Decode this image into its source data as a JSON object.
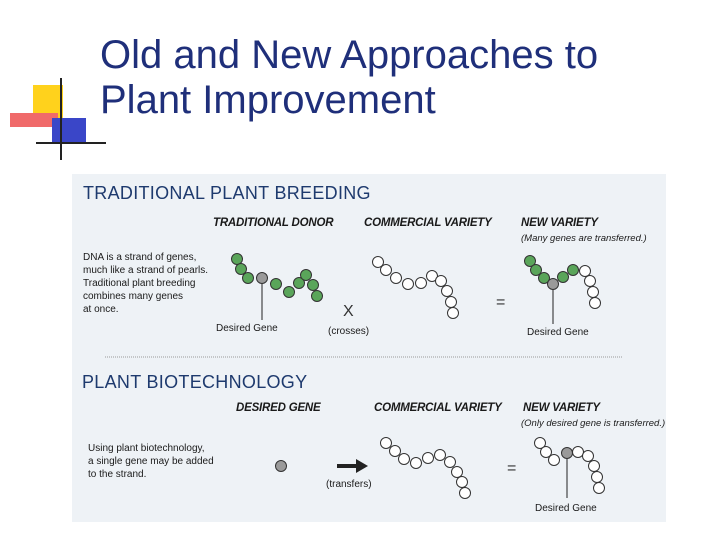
{
  "title": {
    "line1": "Old and New Approaches to",
    "line2": "Plant Improvement"
  },
  "traditional": {
    "heading": "TRADITIONAL PLANT BREEDING",
    "col_donor": "TRADITIONAL DONOR",
    "col_commercial": "COMMERCIAL VARIETY",
    "col_new": "NEW VARIETY",
    "new_note": "(Many genes are transferred.)",
    "desc": [
      "DNA is a strand of genes,",
      "much like a strand of pearls.",
      "Traditional plant breeding",
      "combines many genes",
      "at once."
    ],
    "desired_gene_label": "Desired Gene",
    "operator": "X",
    "operator_caption": "(crosses)",
    "equals": "=",
    "new_desired_label": "Desired Gene"
  },
  "biotech": {
    "heading": "PLANT BIOTECHNOLOGY",
    "col_desired": "DESIRED GENE",
    "col_commercial": "COMMERCIAL VARIETY",
    "col_new": "NEW VARIETY",
    "new_note": "(Only desired gene is transferred.)",
    "desc": [
      "Using plant biotechnology,",
      "a single gene may be added",
      "to the strand."
    ],
    "operator_caption": "(transfers)",
    "equals": "=",
    "new_desired_label": "Desired Gene"
  },
  "colors": {
    "title": "#1f2f7a",
    "heading": "#1e3a6e",
    "panel": "#eef2f6",
    "gene_green": "#5aa55a",
    "gene_white": "#ffffff",
    "desired_gray": "#9a9a9a"
  }
}
